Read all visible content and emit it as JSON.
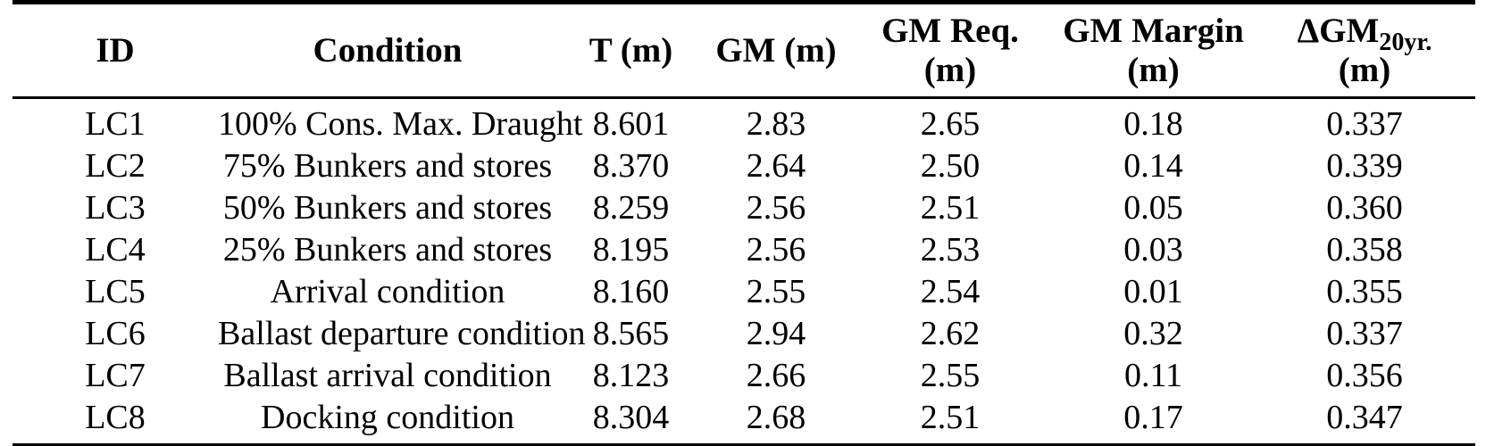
{
  "page": {
    "background": "#ffffff",
    "text_color": "#000000",
    "rule_color": "#000000"
  },
  "table": {
    "columns": [
      {
        "label": "ID"
      },
      {
        "label": "Condition"
      },
      {
        "label": "T (m)"
      },
      {
        "label": "GM (m)"
      },
      {
        "label": "GM Req.",
        "unit": "(m)"
      },
      {
        "label": "GM Margin",
        "unit": "(m)"
      },
      {
        "label": "ΔGM",
        "subscript": "20yr.",
        "unit": "(m)"
      }
    ],
    "rows": [
      [
        "LC1",
        "100% Cons. Max. Draught",
        "8.601",
        "2.83",
        "2.65",
        "0.18",
        "0.337"
      ],
      [
        "LC2",
        "75% Bunkers and stores",
        "8.370",
        "2.64",
        "2.50",
        "0.14",
        "0.339"
      ],
      [
        "LC3",
        "50% Bunkers and stores",
        "8.259",
        "2.56",
        "2.51",
        "0.05",
        "0.360"
      ],
      [
        "LC4",
        "25% Bunkers and stores",
        "8.195",
        "2.56",
        "2.53",
        "0.03",
        "0.358"
      ],
      [
        "LC5",
        "Arrival condition",
        "8.160",
        "2.55",
        "2.54",
        "0.01",
        "0.355"
      ],
      [
        "LC6",
        "Ballast departure condition",
        "8.565",
        "2.94",
        "2.62",
        "0.32",
        "0.337"
      ],
      [
        "LC7",
        "Ballast arrival condition",
        "8.123",
        "2.66",
        "2.55",
        "0.11",
        "0.356"
      ],
      [
        "LC8",
        "Docking condition",
        "8.304",
        "2.68",
        "2.51",
        "0.17",
        "0.347"
      ]
    ]
  }
}
